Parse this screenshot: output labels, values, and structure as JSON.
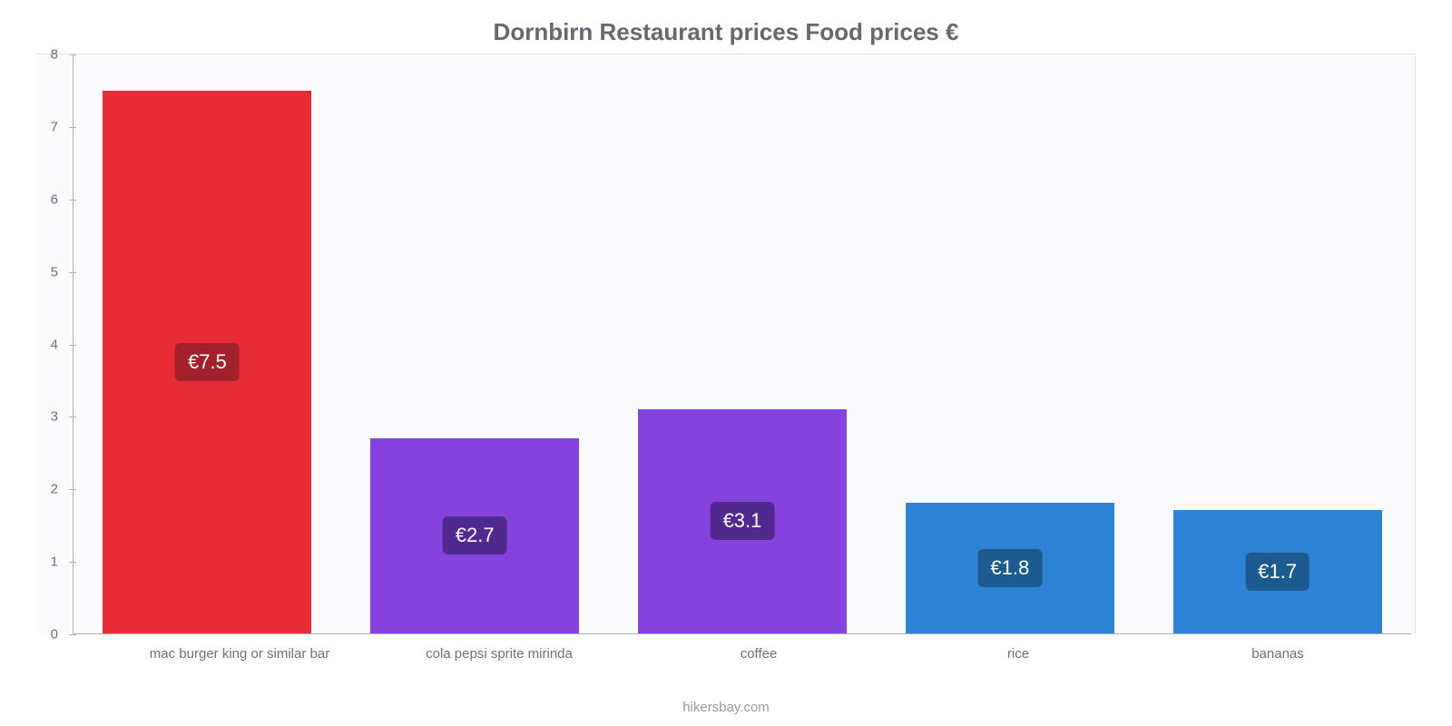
{
  "chart": {
    "type": "bar",
    "title": "Dornbirn Restaurant prices Food prices €",
    "title_fontsize": 26,
    "title_color": "#676770",
    "credit": "hikersbay.com",
    "credit_color": "#98989f",
    "background_color": "#ffffff",
    "plot_background": "#fbfbfd",
    "axis_color": "#b0b0b8",
    "label_color": "#6f6f78",
    "label_fontsize": 15,
    "value_label_fontsize": 22,
    "value_label_text_color": "#ffffff",
    "currency_prefix": "€",
    "ymin": 0,
    "ymax": 8,
    "ytick_step": 1,
    "bar_width_ratio": 0.78,
    "value_badge_radius": 6,
    "categories": [
      "mac burger king or similar bar",
      "cola pepsi sprite mirinda",
      "coffee",
      "rice",
      "bananas"
    ],
    "values": [
      7.5,
      2.7,
      3.1,
      1.8,
      1.7
    ],
    "value_labels": [
      "€7.5",
      "€2.7",
      "€3.1",
      "€1.8",
      "€1.7"
    ],
    "bar_colors": [
      "#e82c37",
      "#8642dc",
      "#8642dc",
      "#2f83d6",
      "#2f83d6"
    ],
    "badge_colors": [
      "#a1202a",
      "#522a8f",
      "#522a8f",
      "#1d5a8f",
      "#1d5a8f"
    ]
  }
}
